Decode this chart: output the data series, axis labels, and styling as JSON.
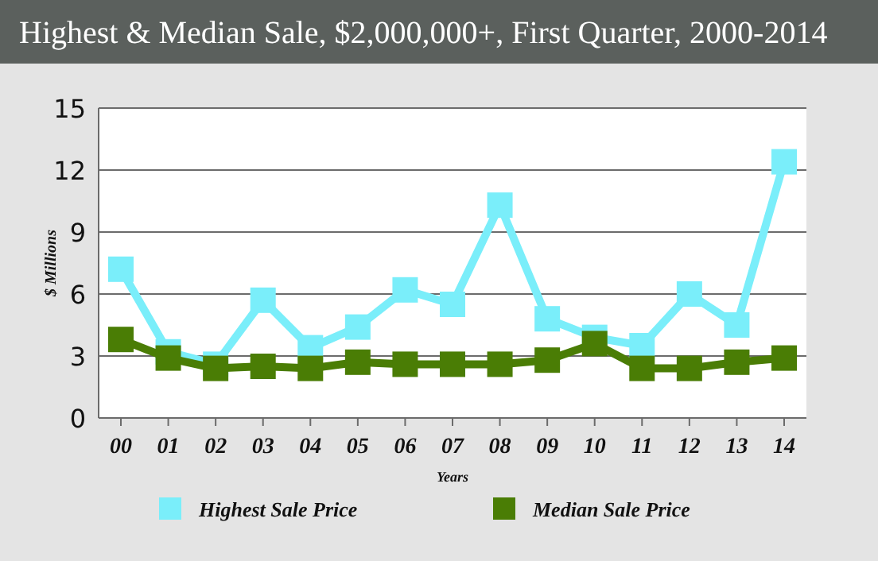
{
  "chart_data": {
    "type": "line",
    "title": "Highest & Median Sale, $2,000,000+, First Quarter, 2000-2014",
    "xlabel": "Years",
    "ylabel": "$ Millions",
    "categories": [
      "00",
      "01",
      "02",
      "03",
      "04",
      "05",
      "06",
      "07",
      "08",
      "09",
      "10",
      "11",
      "12",
      "13",
      "14"
    ],
    "series": [
      {
        "name": "Highest Sale Price",
        "color": "#7aeefa",
        "values": [
          7.2,
          3.2,
          2.6,
          5.7,
          3.4,
          4.4,
          6.2,
          5.5,
          10.3,
          4.8,
          3.9,
          3.5,
          6.0,
          4.5,
          12.4
        ]
      },
      {
        "name": "Median Sale Price",
        "color": "#4a7d05",
        "values": [
          3.8,
          2.9,
          2.4,
          2.5,
          2.4,
          2.7,
          2.6,
          2.6,
          2.6,
          2.8,
          3.6,
          2.4,
          2.4,
          2.7,
          2.9
        ]
      }
    ],
    "ylim": [
      0,
      15
    ],
    "yticks": [
      0,
      3,
      6,
      9,
      12,
      15
    ],
    "grid": "y",
    "legend": "bottom",
    "marker": "square",
    "line_style": "solid"
  }
}
